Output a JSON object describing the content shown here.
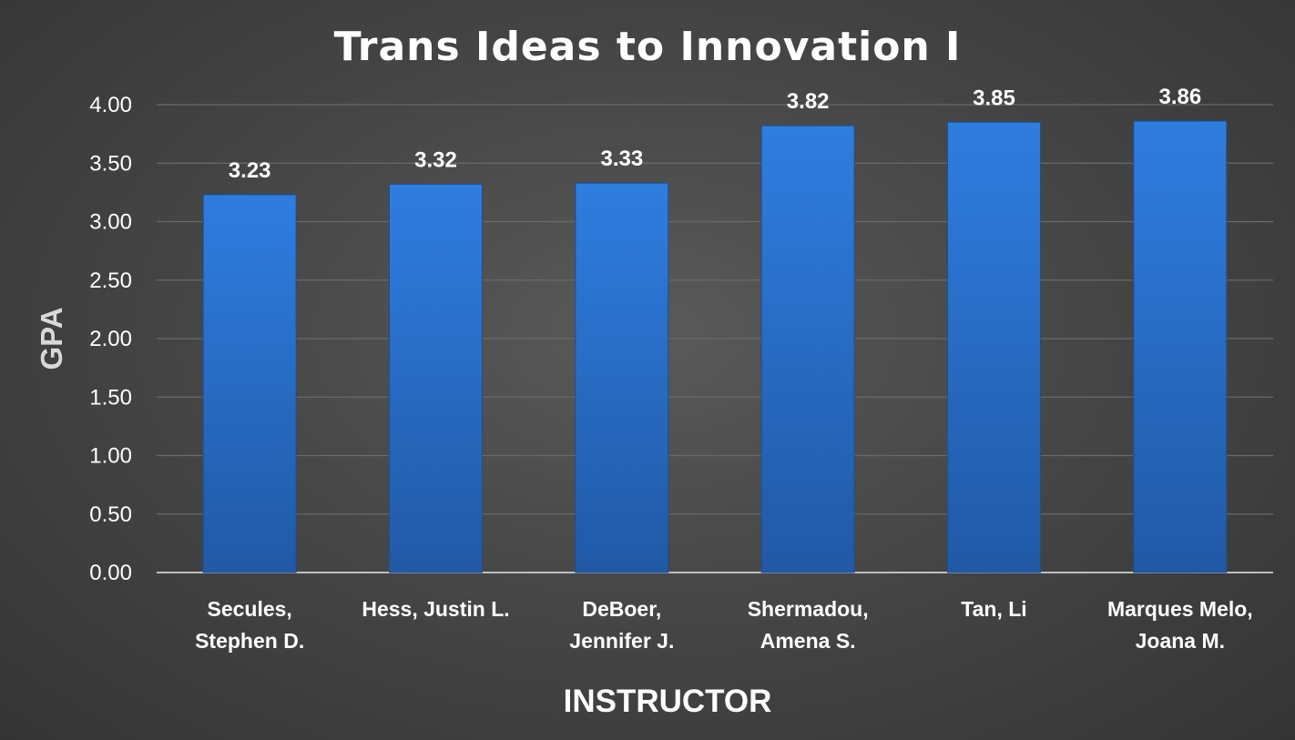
{
  "chart_data": {
    "type": "bar",
    "title": "Trans Ideas to Innovation I",
    "xlabel": "INSTRUCTOR",
    "ylabel": "GPA",
    "ylim": [
      0,
      4
    ],
    "yticks": [
      "0.00",
      "0.50",
      "1.00",
      "1.50",
      "2.00",
      "2.50",
      "3.00",
      "3.50",
      "4.00"
    ],
    "grid": true,
    "categories": [
      [
        "Secules,",
        "Stephen D."
      ],
      [
        "Hess, Justin L."
      ],
      [
        "DeBoer,",
        "Jennifer J."
      ],
      [
        "Shermadou,",
        "Amena S."
      ],
      [
        "Tan, Li"
      ],
      [
        "Marques Melo,",
        "Joana M."
      ]
    ],
    "values": [
      3.23,
      3.32,
      3.33,
      3.82,
      3.85,
      3.86
    ],
    "value_labels": [
      "3.23",
      "3.32",
      "3.33",
      "3.82",
      "3.85",
      "3.86"
    ],
    "colors": {
      "bar_top": "#2f7de0",
      "bar_bottom": "#2159a6"
    }
  }
}
